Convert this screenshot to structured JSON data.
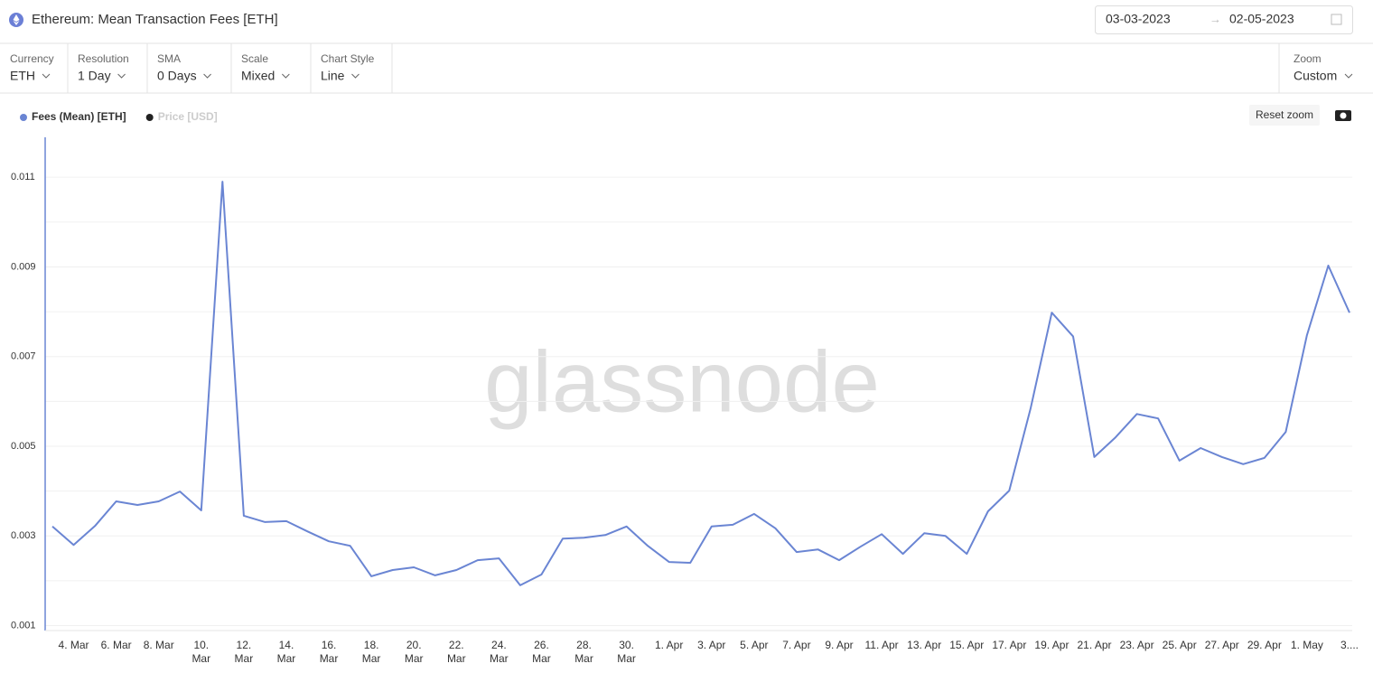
{
  "header": {
    "title": "Ethereum: Mean Transaction Fees [ETH]",
    "date_from": "03-03-2023",
    "date_to": "02-05-2023"
  },
  "controls": [
    {
      "label": "Currency",
      "value": "ETH"
    },
    {
      "label": "Resolution",
      "value": "1 Day"
    },
    {
      "label": "SMA",
      "value": "0 Days"
    },
    {
      "label": "Scale",
      "value": "Mixed"
    },
    {
      "label": "Chart Style",
      "value": "Line"
    }
  ],
  "zoom": {
    "label": "Zoom",
    "value": "Custom"
  },
  "reset_zoom": "Reset zoom",
  "watermark": "glassnode",
  "chart_data": {
    "type": "line",
    "categories": [
      null,
      "4. Mar",
      null,
      "6. Mar",
      null,
      "8. Mar",
      null,
      "10. Mar",
      null,
      "12. Mar",
      null,
      "14. Mar",
      null,
      "16. Mar",
      null,
      "18. Mar",
      null,
      "20. Mar",
      null,
      "22. Mar",
      null,
      "24. Mar",
      null,
      "26. Mar",
      null,
      "28. Mar",
      null,
      "30. Mar",
      null,
      "1. Apr",
      null,
      "3. Apr",
      null,
      "5. Apr",
      null,
      "7. Apr",
      null,
      "9. Apr",
      null,
      "11. Apr",
      null,
      "13. Apr",
      null,
      "15. Apr",
      null,
      "17. Apr",
      null,
      "19. Apr",
      null,
      "21. Apr",
      null,
      "23. Apr",
      null,
      "25. Apr",
      null,
      "27. Apr",
      null,
      "29. Apr",
      null,
      "1. May",
      null,
      "3...."
    ],
    "series": [
      {
        "name": "Fees (Mean) [ETH]",
        "color": "#6a85d3",
        "values": [
          0.00321,
          0.0028,
          0.00322,
          0.00377,
          0.00369,
          0.00377,
          0.00399,
          0.00357,
          0.0109,
          0.00345,
          0.00331,
          0.00333,
          0.0031,
          0.00288,
          0.00278,
          0.0021,
          0.00224,
          0.0023,
          0.00212,
          0.00224,
          0.00246,
          0.0025,
          0.0019,
          0.00214,
          0.00294,
          0.00296,
          0.00302,
          0.00321,
          0.00278,
          0.00242,
          0.0024,
          0.00321,
          0.00325,
          0.00349,
          0.00317,
          0.00264,
          0.0027,
          0.00246,
          0.00276,
          0.00304,
          0.0026,
          0.00306,
          0.003,
          0.0026,
          0.00355,
          0.00401,
          0.00584,
          0.00798,
          0.00745,
          0.00476,
          0.0052,
          0.00572,
          0.00562,
          0.00468,
          0.00496,
          0.00476,
          0.0046,
          0.00474,
          0.00532,
          0.00748,
          0.00903,
          0.00798
        ]
      }
    ],
    "hidden_series": [
      {
        "name": "Price [USD]",
        "color": "#222222"
      }
    ],
    "ylim": [
      0.00089,
      0.01189
    ],
    "yticks": [
      0.001,
      0.003,
      0.005,
      0.007,
      0.009,
      0.011
    ],
    "minor_yticks": [
      0.002,
      0.004,
      0.006,
      0.008,
      0.01
    ],
    "grid": true
  }
}
